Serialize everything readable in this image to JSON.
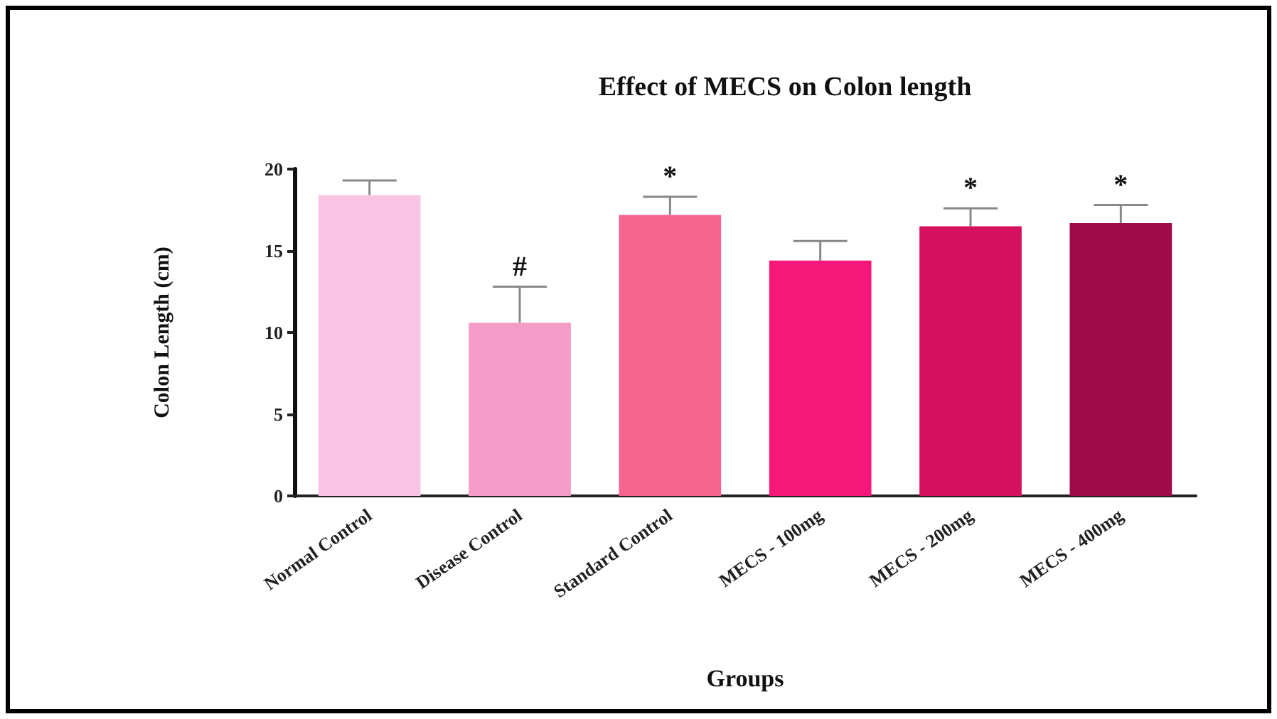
{
  "chart_data": {
    "type": "bar",
    "title": "Effect of MECS on Colon length",
    "xlabel": "Groups",
    "ylabel": "Colon Length (cm)",
    "categories": [
      "Normal Control",
      "Disease Control",
      "Standard Control",
      "MECS - 100mg",
      "MECS - 200mg",
      "MECS - 400mg"
    ],
    "values": [
      18.4,
      10.6,
      17.2,
      14.4,
      16.5,
      16.7
    ],
    "colors": [
      "#f9c3e4",
      "#f59bc7",
      "#f7648f",
      "#f5177a",
      "#d4105f",
      "#a00a48"
    ],
    "errors": [
      [
        18.4,
        19.3
      ],
      [
        10.6,
        12.8
      ],
      [
        17.2,
        18.3
      ],
      [
        14.4,
        15.6
      ],
      [
        16.5,
        17.6
      ],
      [
        16.7,
        17.8
      ]
    ],
    "ylim": [
      0,
      20
    ],
    "yticks": [
      0,
      5,
      10,
      15,
      20
    ],
    "grid": false,
    "annotations": [
      {
        "text": "#",
        "x": "Disease Control",
        "y": 12.8
      },
      {
        "text": "*",
        "x": "Standard Control",
        "y": 18.3
      },
      {
        "text": "*",
        "x": "MECS - 200mg",
        "y": 17.6
      },
      {
        "text": "*",
        "x": "MECS - 400mg",
        "y": 17.8
      }
    ]
  }
}
